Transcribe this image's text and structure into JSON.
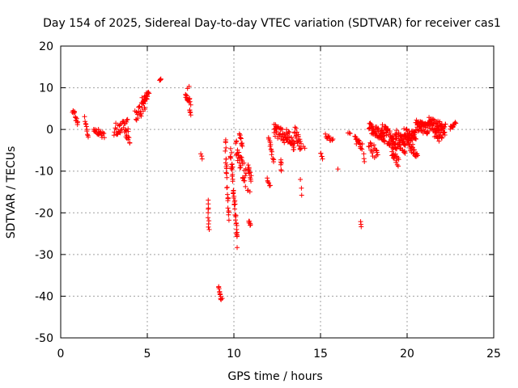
{
  "chart_data": {
    "type": "scatter",
    "title": "Day 154 of 2025, Sidereal Day-to-day VTEC variation (SDTVAR) for receiver cas1",
    "xlabel": "GPS time / hours",
    "ylabel": "SDTVAR / TECUs",
    "xlim": [
      0,
      25
    ],
    "ylim": [
      -50,
      20
    ],
    "xticks": [
      0,
      5,
      10,
      15,
      20,
      25
    ],
    "yticks": [
      -50,
      -40,
      -30,
      -20,
      -10,
      0,
      10,
      20
    ],
    "grid": true,
    "marker": "+",
    "color": "#ff0000",
    "segments": [
      {
        "x0": 0.7,
        "x1": 1.0,
        "y0": 4.5,
        "y1": 1.5,
        "n": 14,
        "jitter": 0.8
      },
      {
        "x0": 1.4,
        "x1": 1.6,
        "y0": 2.5,
        "y1": -1.5,
        "n": 10,
        "jitter": 0.6
      },
      {
        "x0": 1.9,
        "x1": 2.5,
        "y0": 0,
        "y1": -1.5,
        "n": 22,
        "jitter": 0.7
      },
      {
        "x0": 3.1,
        "x1": 3.9,
        "y0": 0,
        "y1": 1,
        "n": 30,
        "jitter": 1.5
      },
      {
        "x0": 3.7,
        "x1": 4.0,
        "y0": -1,
        "y1": -3,
        "n": 10,
        "jitter": 0.8
      },
      {
        "x0": 4.3,
        "x1": 4.9,
        "y0": 3,
        "y1": 6,
        "n": 24,
        "jitter": 1.5
      },
      {
        "x0": 4.7,
        "x1": 5.1,
        "y0": 7,
        "y1": 8.5,
        "n": 22,
        "jitter": 0.9
      },
      {
        "x0": 5.7,
        "x1": 5.8,
        "y0": 11.5,
        "y1": 12,
        "n": 5,
        "jitter": 0.3
      },
      {
        "x0": 7.2,
        "x1": 7.5,
        "y0": 8,
        "y1": 6.5,
        "n": 16,
        "jitter": 0.8
      },
      {
        "x0": 7.3,
        "x1": 7.4,
        "y0": 10,
        "y1": 10.5,
        "n": 2,
        "jitter": 0.2
      },
      {
        "x0": 7.45,
        "x1": 7.5,
        "y0": 5,
        "y1": 3.5,
        "n": 5,
        "jitter": 0.4
      },
      {
        "x0": 8.1,
        "x1": 8.15,
        "y0": -6,
        "y1": -7,
        "n": 3,
        "jitter": 0.3
      },
      {
        "x0": 8.5,
        "x1": 8.55,
        "y0": -17,
        "y1": -24,
        "n": 10,
        "jitter": 0.3
      },
      {
        "x0": 9.1,
        "x1": 9.3,
        "y0": -38,
        "y1": -41,
        "n": 12,
        "jitter": 0.5
      },
      {
        "x0": 9.5,
        "x1": 9.7,
        "y0": -2,
        "y1": -22,
        "n": 26,
        "jitter": 1.5
      },
      {
        "x0": 9.8,
        "x1": 10.2,
        "y0": -5,
        "y1": -27,
        "n": 45,
        "jitter": 2
      },
      {
        "x0": 10.1,
        "x1": 10.7,
        "y0": -4,
        "y1": -12,
        "n": 32,
        "jitter": 2.5
      },
      {
        "x0": 10.3,
        "x1": 10.5,
        "y0": -1,
        "y1": -4,
        "n": 10,
        "jitter": 1.2
      },
      {
        "x0": 10.8,
        "x1": 11.0,
        "y0": -9,
        "y1": -12,
        "n": 12,
        "jitter": 1
      },
      {
        "x0": 10.85,
        "x1": 10.95,
        "y0": -22,
        "y1": -23,
        "n": 6,
        "jitter": 0.5
      },
      {
        "x0": 10.8,
        "x1": 10.9,
        "y0": -14.5,
        "y1": -15,
        "n": 3,
        "jitter": 0.2
      },
      {
        "x0": 11.9,
        "x1": 12.1,
        "y0": -12,
        "y1": -13.5,
        "n": 6,
        "jitter": 0.5
      },
      {
        "x0": 12.0,
        "x1": 12.3,
        "y0": -3,
        "y1": -7,
        "n": 14,
        "jitter": 1.2
      },
      {
        "x0": 12.3,
        "x1": 13.0,
        "y0": 0,
        "y1": -2,
        "n": 36,
        "jitter": 1.5
      },
      {
        "x0": 12.7,
        "x1": 12.75,
        "y0": -7,
        "y1": -10,
        "n": 6,
        "jitter": 0.4
      },
      {
        "x0": 13.0,
        "x1": 13.5,
        "y0": -1,
        "y1": -4,
        "n": 28,
        "jitter": 1.5
      },
      {
        "x0": 13.5,
        "x1": 13.9,
        "y0": 0,
        "y1": -5,
        "n": 22,
        "jitter": 1.5
      },
      {
        "x0": 13.85,
        "x1": 13.9,
        "y0": -12,
        "y1": -16,
        "n": 3,
        "jitter": 0.3
      },
      {
        "x0": 14.0,
        "x1": 14.1,
        "y0": -4,
        "y1": -4.5,
        "n": 2,
        "jitter": 0.2
      },
      {
        "x0": 15.0,
        "x1": 15.1,
        "y0": -5.5,
        "y1": -7,
        "n": 5,
        "jitter": 0.4
      },
      {
        "x0": 15.3,
        "x1": 15.7,
        "y0": -1.5,
        "y1": -2.5,
        "n": 12,
        "jitter": 0.5
      },
      {
        "x0": 16.0,
        "x1": 16.0,
        "y0": -9.5,
        "y1": -9.5,
        "n": 1,
        "jitter": 0
      },
      {
        "x0": 16.6,
        "x1": 16.7,
        "y0": -1,
        "y1": -1,
        "n": 3,
        "jitter": 0.3
      },
      {
        "x0": 17.0,
        "x1": 17.4,
        "y0": -2,
        "y1": -4,
        "n": 18,
        "jitter": 1
      },
      {
        "x0": 17.3,
        "x1": 17.35,
        "y0": -22,
        "y1": -23.5,
        "n": 3,
        "jitter": 0.3
      },
      {
        "x0": 17.5,
        "x1": 17.55,
        "y0": -6,
        "y1": -7.5,
        "n": 3,
        "jitter": 0.3
      },
      {
        "x0": 17.8,
        "x1": 18.6,
        "y0": 0.5,
        "y1": -1.5,
        "n": 45,
        "jitter": 1.2
      },
      {
        "x0": 17.8,
        "x1": 18.3,
        "y0": -4,
        "y1": -6,
        "n": 18,
        "jitter": 1.5
      },
      {
        "x0": 18.5,
        "x1": 19.4,
        "y0": -0.5,
        "y1": -3,
        "n": 70,
        "jitter": 2
      },
      {
        "x0": 19.1,
        "x1": 19.5,
        "y0": -5,
        "y1": -8,
        "n": 20,
        "jitter": 1.2
      },
      {
        "x0": 19.4,
        "x1": 19.9,
        "y0": -2,
        "y1": -4,
        "n": 40,
        "jitter": 2
      },
      {
        "x0": 19.8,
        "x1": 20.5,
        "y0": -1,
        "y1": -2,
        "n": 45,
        "jitter": 1.5
      },
      {
        "x0": 20.0,
        "x1": 20.6,
        "y0": -3,
        "y1": -6,
        "n": 25,
        "jitter": 1.2
      },
      {
        "x0": 20.5,
        "x1": 21.2,
        "y0": 1,
        "y1": 0,
        "n": 55,
        "jitter": 1.3
      },
      {
        "x0": 21.2,
        "x1": 22.2,
        "y0": 1.5,
        "y1": 0,
        "n": 70,
        "jitter": 1.5
      },
      {
        "x0": 21.6,
        "x1": 22.0,
        "y0": -1,
        "y1": -2.5,
        "n": 18,
        "jitter": 1
      },
      {
        "x0": 22.5,
        "x1": 22.8,
        "y0": 0.5,
        "y1": 1.5,
        "n": 12,
        "jitter": 0.5
      }
    ]
  }
}
